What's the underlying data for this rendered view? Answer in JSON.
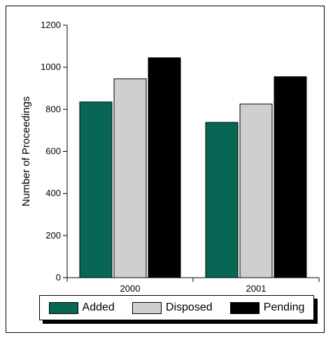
{
  "chart_data": {
    "type": "bar",
    "categories": [
      "2000",
      "2001"
    ],
    "series": [
      {
        "name": "Added",
        "values": [
          835,
          738
        ],
        "color": "#076754"
      },
      {
        "name": "Disposed",
        "values": [
          945,
          825
        ],
        "color": "#cfcfcf"
      },
      {
        "name": "Pending",
        "values": [
          1045,
          955
        ],
        "color": "#000000"
      }
    ],
    "title": "",
    "xlabel": "",
    "ylabel": "Number of Proceedings",
    "ylim": [
      0,
      1200
    ],
    "yticks": [
      "0",
      "200",
      "400",
      "600",
      "800",
      "1000",
      "1200"
    ],
    "grid": false,
    "legend_position": "bottom"
  }
}
